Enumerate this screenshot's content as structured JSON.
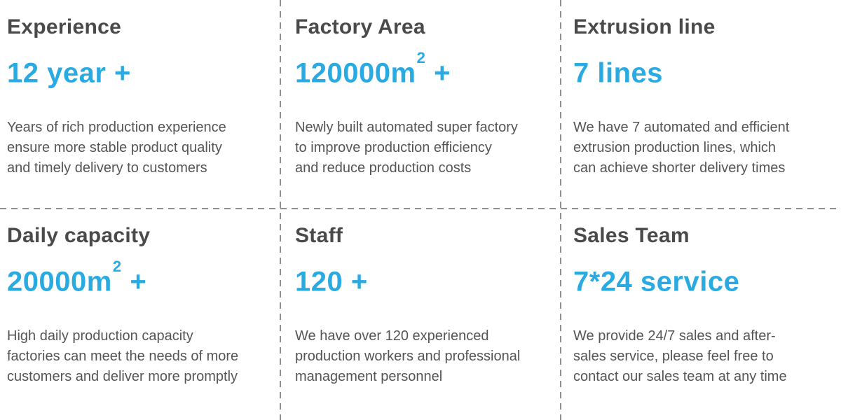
{
  "accent_color": "#29abe2",
  "heading_color": "#4a4a4a",
  "body_color": "#555555",
  "divider_color": "#909090",
  "cells": [
    {
      "title": "Experience",
      "value": "12 year +",
      "value_sup": "",
      "value_suffix": "",
      "description": "Years of rich production experience\nensure more stable product quality\nand timely delivery to customers"
    },
    {
      "title": "Factory Area",
      "value": "120000m",
      "value_sup": "2",
      "value_suffix": " +",
      "description": "Newly built automated super factory\nto improve production efficiency\nand reduce production costs"
    },
    {
      "title": "Extrusion line",
      "value": "7 lines",
      "value_sup": "",
      "value_suffix": "",
      "description": "We have 7 automated and efficient\nextrusion production lines, which\ncan achieve shorter delivery times"
    },
    {
      "title": "Daily capacity",
      "value": "20000m",
      "value_sup": "2",
      "value_suffix": " +",
      "description": "High daily production capacity\nfactories can meet the needs of more\ncustomers and deliver more promptly"
    },
    {
      "title": "Staff",
      "value": "120 +",
      "value_sup": "",
      "value_suffix": "",
      "description": "We have over 120 experienced\nproduction workers and professional\nmanagement personnel"
    },
    {
      "title": "Sales Team",
      "value": "7*24 service",
      "value_sup": "",
      "value_suffix": "",
      "description": "We provide 24/7 sales and after-\nsales service, please feel free to\ncontact our sales team at any time"
    }
  ]
}
